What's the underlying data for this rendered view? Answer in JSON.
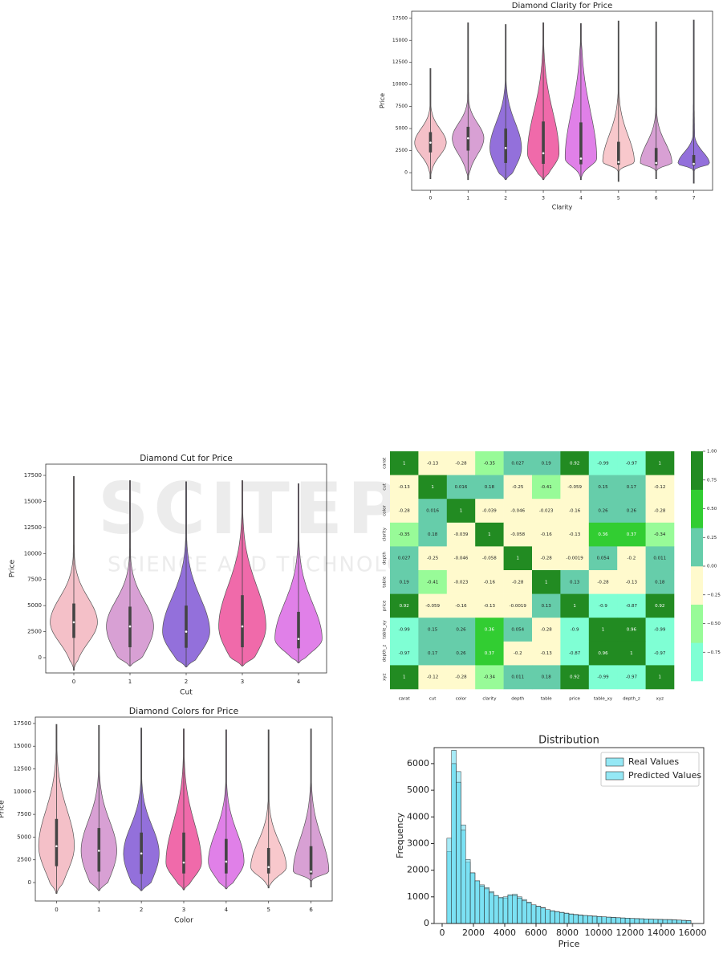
{
  "watermark": {
    "title": "SCITEPRESS",
    "subtitle": "SCIENCE AND TECHNOLOGY PUBLICATIONS"
  },
  "chart_data": [
    {
      "type": "violin",
      "title": "Diamond Clarity for Price",
      "xlabel": "Clarity",
      "ylabel": "Price",
      "categories": [
        "0",
        "1",
        "2",
        "3",
        "4",
        "5",
        "6",
        "7"
      ],
      "colors": [
        "#f4c0c8",
        "#d8a0d4",
        "#9370db",
        "#f06aaa",
        "#e080e8",
        "#f8c8cc",
        "#d8a0d4",
        "#9370db"
      ],
      "min": [
        -700,
        -800,
        -800,
        -800,
        -800,
        -1000,
        -700,
        -1200
      ],
      "q1": [
        2300,
        2500,
        1100,
        1000,
        950,
        900,
        850,
        800
      ],
      "median": [
        3400,
        3900,
        2800,
        2200,
        1600,
        1200,
        1100,
        1000
      ],
      "q3": [
        4600,
        5200,
        5000,
        5800,
        5700,
        3500,
        2800,
        2000
      ],
      "max": [
        11800,
        17000,
        16800,
        17000,
        16900,
        17200,
        17100,
        17300
      ],
      "ylim": [
        -2000,
        18300
      ],
      "yticks": [
        0,
        2500,
        5000,
        7500,
        10000,
        12500,
        15000,
        17500
      ]
    },
    {
      "type": "violin",
      "title": "Diamond Cut for Price",
      "xlabel": "Cut",
      "ylabel": "Price",
      "categories": [
        "0",
        "1",
        "2",
        "3",
        "4"
      ],
      "colors": [
        "#f4c0c8",
        "#d8a0d4",
        "#9370db",
        "#f06aaa",
        "#e080e8"
      ],
      "min": [
        -1200,
        -800,
        -900,
        -800,
        -500
      ],
      "q1": [
        1900,
        1000,
        950,
        1000,
        900
      ],
      "median": [
        3400,
        3000,
        2500,
        3000,
        1800
      ],
      "q3": [
        5200,
        4900,
        5000,
        6000,
        4400
      ],
      "max": [
        17400,
        17000,
        16900,
        17000,
        16700
      ],
      "ylim": [
        -1465,
        18580
      ],
      "yticks": [
        0,
        2500,
        5000,
        7500,
        10000,
        12500,
        15000,
        17500
      ]
    },
    {
      "type": "violin",
      "title": "Diamond Colors for Price",
      "xlabel": "Color",
      "ylabel": "Price",
      "categories": [
        "0",
        "1",
        "2",
        "3",
        "4",
        "5",
        "6"
      ],
      "colors": [
        "#f4c0c8",
        "#d8a0d4",
        "#9370db",
        "#f06aaa",
        "#e080e8",
        "#f8c8cc",
        "#d8a0d4"
      ],
      "min": [
        -1200,
        -900,
        -900,
        -800,
        -700,
        -600,
        -500
      ],
      "q1": [
        1800,
        1200,
        950,
        1000,
        1000,
        1000,
        900
      ],
      "median": [
        4000,
        3500,
        3200,
        2200,
        2300,
        1700,
        1200
      ],
      "q3": [
        7000,
        6000,
        5500,
        5500,
        4800,
        3800,
        4000
      ],
      "max": [
        17400,
        17300,
        17000,
        16900,
        16800,
        16800,
        16900
      ],
      "ylim": [
        -2030,
        18200
      ],
      "yticks": [
        0,
        2500,
        5000,
        7500,
        10000,
        12500,
        15000,
        17500
      ]
    },
    {
      "type": "heatmap",
      "labels": [
        "carat",
        "cut",
        "color",
        "clarity",
        "depth",
        "table",
        "price",
        "table_xy",
        "depth_z",
        "xyz"
      ],
      "values": [
        [
          1,
          -0.13,
          -0.28,
          -0.35,
          0.027,
          0.19,
          0.92,
          -0.99,
          -0.97,
          1
        ],
        [
          -0.13,
          1,
          0.016,
          0.18,
          -0.25,
          -0.41,
          -0.059,
          0.15,
          0.17,
          -0.12
        ],
        [
          -0.28,
          0.016,
          1,
          -0.039,
          -0.046,
          -0.023,
          -0.16,
          0.26,
          0.26,
          -0.28
        ],
        [
          -0.35,
          0.18,
          -0.039,
          1,
          -0.058,
          -0.16,
          -0.13,
          0.36,
          0.37,
          -0.34
        ],
        [
          0.027,
          -0.25,
          -0.046,
          -0.058,
          1,
          -0.28,
          -0.0019,
          0.054,
          -0.2,
          0.011
        ],
        [
          0.19,
          -0.41,
          -0.023,
          -0.16,
          -0.28,
          1,
          0.13,
          -0.28,
          -0.13,
          0.18
        ],
        [
          0.92,
          -0.059,
          -0.16,
          -0.13,
          -0.0019,
          0.13,
          1,
          -0.9,
          -0.87,
          0.92
        ],
        [
          -0.99,
          0.15,
          0.26,
          0.36,
          0.054,
          -0.28,
          -0.9,
          1,
          0.96,
          -0.99
        ],
        [
          -0.97,
          0.17,
          0.26,
          0.37,
          -0.2,
          -0.13,
          -0.87,
          0.96,
          1,
          -0.97
        ],
        [
          1,
          -0.12,
          -0.28,
          -0.34,
          0.011,
          0.18,
          0.92,
          -0.99,
          -0.97,
          1
        ]
      ],
      "colorscale": {
        "colors": [
          "#7fffd4",
          "#98fb98",
          "#fffacd",
          "#66cdaa",
          "#32cd32",
          "#228b22"
        ],
        "range": [
          -1,
          1
        ]
      },
      "cbar_ticks": [
        {
          "value": 1,
          "label": "1.00"
        },
        {
          "value": 0.75,
          "label": "0.75"
        },
        {
          "value": 0.5,
          "label": "0.50"
        },
        {
          "value": 0.25,
          "label": "0.25"
        },
        {
          "value": 0,
          "label": "0.00"
        },
        {
          "value": -0.25,
          "label": "−0.25"
        },
        {
          "value": -0.5,
          "label": "−0.50"
        },
        {
          "value": -0.75,
          "label": "−0.75"
        }
      ]
    },
    {
      "type": "histogram",
      "title": "Distribution",
      "xlabel": "Price",
      "ylabel": "Frequency",
      "legend": "upper right",
      "bins": [
        300,
        600,
        900,
        1200,
        1500,
        1800,
        2100,
        2400,
        2700,
        3000,
        3300,
        3600,
        3900,
        4200,
        4500,
        4800,
        5100,
        5400,
        5700,
        6000,
        6300,
        6600,
        6900,
        7200,
        7500,
        7800,
        8100,
        8400,
        8700,
        9000,
        9300,
        9600,
        9900,
        10200,
        10500,
        10800,
        11100,
        11400,
        11700,
        12000,
        12300,
        12600,
        12900,
        13200,
        13500,
        13800,
        14100,
        14400,
        14700,
        15000,
        15300,
        15600,
        15900
      ],
      "series": [
        {
          "name": "Real Values",
          "color": "#4fd8ef",
          "values": [
            2700,
            6500,
            5700,
            3700,
            2300,
            1900,
            1600,
            1450,
            1350,
            1200,
            1050,
            950,
            950,
            1050,
            1100,
            1000,
            900,
            800,
            700,
            650,
            600,
            520,
            480,
            450,
            420,
            390,
            360,
            340,
            320,
            300,
            290,
            280,
            260,
            250,
            240,
            230,
            220,
            210,
            200,
            190,
            185,
            180,
            170,
            165,
            160,
            155,
            150,
            150,
            140,
            130,
            120,
            110
          ]
        },
        {
          "name": "Predicted Values",
          "color": "#4fd8ef",
          "values": [
            3200,
            6000,
            5300,
            3500,
            2400,
            1900,
            1600,
            1400,
            1300,
            1150,
            1050,
            980,
            1000,
            1080,
            1050,
            950,
            850,
            780,
            700,
            640,
            580,
            520,
            470,
            440,
            410,
            380,
            350,
            330,
            310,
            300,
            285,
            270,
            260,
            250,
            235,
            225,
            215,
            205,
            200,
            190,
            180,
            175,
            170,
            160,
            155,
            150,
            145,
            140,
            135,
            125,
            115,
            105
          ]
        }
      ],
      "xlim": [
        -513,
        16720
      ],
      "ylim": [
        0,
        6600
      ],
      "xticks": [
        0,
        2000,
        4000,
        6000,
        8000,
        10000,
        12000,
        14000,
        16000
      ],
      "yticks": [
        0,
        1000,
        2000,
        3000,
        4000,
        5000,
        6000
      ]
    }
  ]
}
